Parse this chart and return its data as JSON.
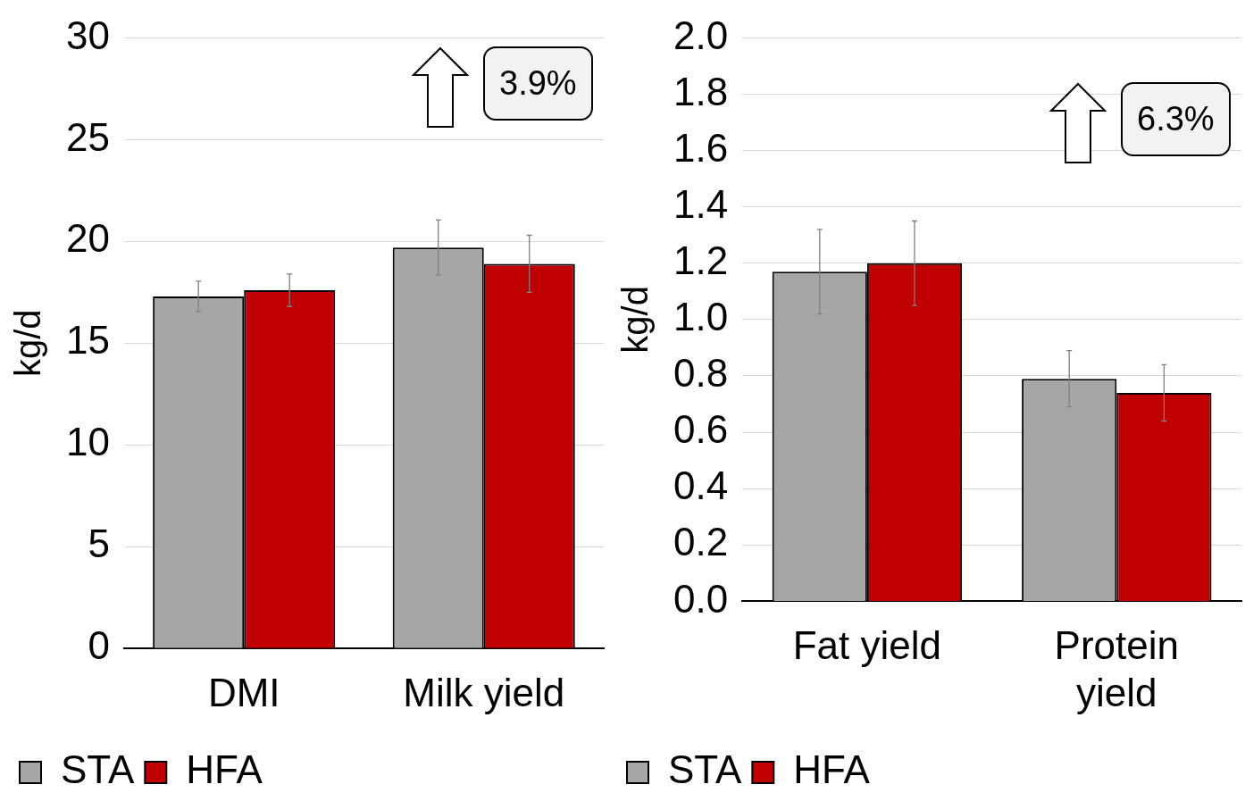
{
  "chart_data": [
    {
      "type": "bar",
      "ylabel": "kg/d",
      "categories": [
        "DMI",
        "Milk yield"
      ],
      "series": [
        {
          "name": "STA",
          "color": "#a6a6a6",
          "values": [
            17.3,
            19.7
          ],
          "errors": [
            0.75,
            1.35
          ]
        },
        {
          "name": "HFA",
          "color": "#c00000",
          "values": [
            17.6,
            18.9
          ],
          "errors": [
            0.8,
            1.4
          ]
        }
      ],
      "ylim": [
        0,
        30
      ],
      "yticks": [
        0,
        5,
        10,
        15,
        20,
        25,
        30
      ],
      "grid": "y",
      "legend": "bottom",
      "annotations": [
        "3.9%"
      ]
    },
    {
      "type": "bar",
      "ylabel": "kg/d",
      "categories": [
        "Fat yield",
        "Protein yield"
      ],
      "series": [
        {
          "name": "STA",
          "color": "#a6a6a6",
          "values": [
            1.17,
            0.79
          ],
          "errors": [
            0.15,
            0.1
          ]
        },
        {
          "name": "HFA",
          "color": "#c00000",
          "values": [
            1.2,
            0.74
          ],
          "errors": [
            0.15,
            0.1
          ]
        }
      ],
      "ylim": [
        0,
        2
      ],
      "yticks": [
        {
          "value": 0,
          "label": "0.0"
        },
        {
          "value": 0.2,
          "label": "0.2"
        },
        {
          "value": 0.4,
          "label": "0.4"
        },
        {
          "value": 0.6,
          "label": "0.6"
        },
        {
          "value": 0.8,
          "label": "0.8"
        },
        {
          "value": 1,
          "label": "1.0"
        },
        {
          "value": 1.2,
          "label": "1.2"
        },
        {
          "value": 1.4,
          "label": "1.4"
        },
        {
          "value": 1.6,
          "label": "1.6"
        },
        {
          "value": 1.8,
          "label": "1.8"
        },
        {
          "value": 2,
          "label": "2.0"
        }
      ],
      "grid": "y",
      "legend": "bottom",
      "annotations": [
        "6.3%"
      ]
    }
  ]
}
